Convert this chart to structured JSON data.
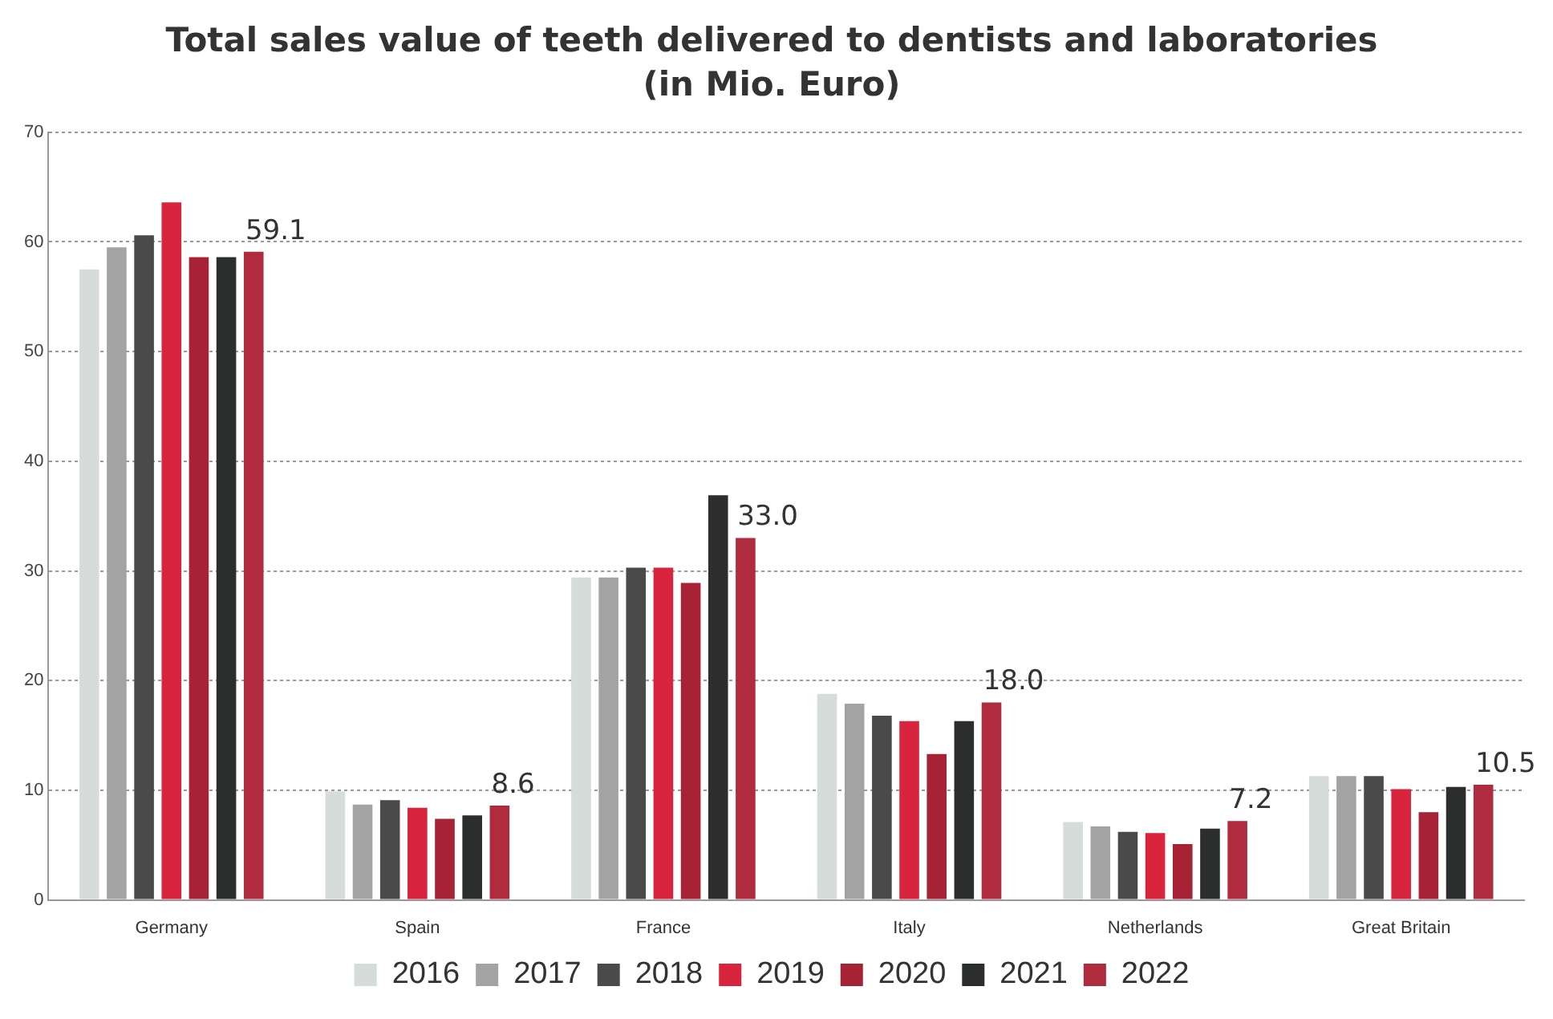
{
  "chart_data": {
    "type": "bar",
    "title": "Total sales value of teeth delivered to dentists and laboratories",
    "subtitle": "(in Mio. Euro)",
    "categories": [
      "Germany",
      "Spain",
      "France",
      "Italy",
      "Netherlands",
      "Great Britain"
    ],
    "series": [
      {
        "name": "2016",
        "color": "#d5dcda",
        "values": [
          57.5,
          9.9,
          29.4,
          18.8,
          7.1,
          11.3
        ]
      },
      {
        "name": "2017",
        "color": "#a3a3a3",
        "values": [
          59.5,
          8.7,
          29.4,
          17.9,
          6.7,
          11.3
        ]
      },
      {
        "name": "2018",
        "color": "#4a4a4a",
        "values": [
          60.6,
          9.1,
          30.3,
          16.8,
          6.2,
          11.3
        ]
      },
      {
        "name": "2019",
        "color": "#d8243c",
        "values": [
          63.6,
          8.4,
          30.3,
          16.3,
          6.1,
          10.1
        ]
      },
      {
        "name": "2020",
        "color": "#a82236",
        "values": [
          58.6,
          7.4,
          28.9,
          13.3,
          5.1,
          8.0
        ]
      },
      {
        "name": "2021",
        "color": "#2b2e2c",
        "values": [
          58.6,
          7.7,
          36.9,
          16.3,
          6.5,
          10.3
        ]
      },
      {
        "name": "2022",
        "color": "#b02b3e",
        "values": [
          59.1,
          8.6,
          33.0,
          18.0,
          7.2,
          10.5
        ],
        "value_labels": [
          "59.1",
          "8.6",
          "33.0",
          "18.0",
          "7.2",
          "10.5"
        ]
      }
    ],
    "ylim": [
      0,
      70
    ],
    "yticks": [
      0,
      10,
      20,
      30,
      40,
      50,
      60,
      70
    ],
    "grid": "y",
    "legend": "bottom"
  }
}
